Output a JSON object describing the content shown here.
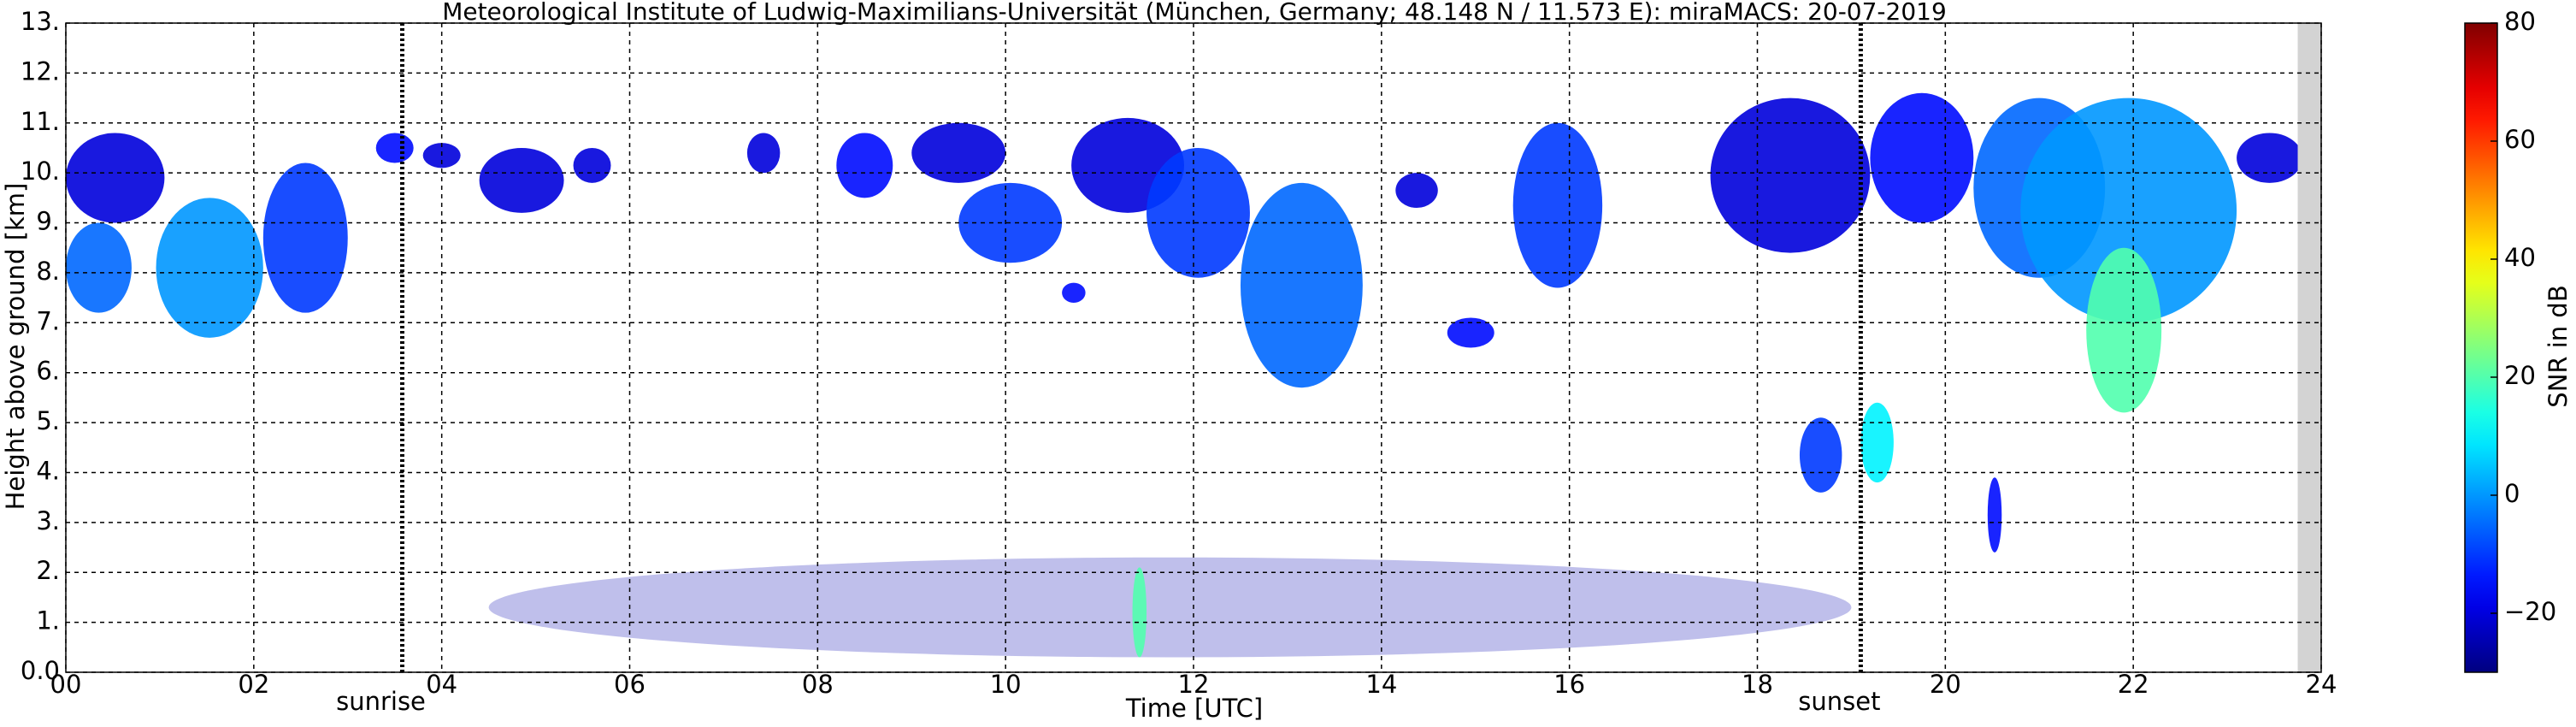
{
  "chart_data": {
    "type": "radar-timeheight",
    "title": "Meteorological Institute of Ludwig-Maximilians-Universität (München, Germany; 48.148 N / 11.573 E):    miraMACS: 20-07-2019",
    "x_label": "Time [UTC]",
    "y_label": "Height above ground [km]",
    "colorbar_label": "SNR in dB",
    "xlim": [
      0,
      24
    ],
    "xticks": [
      {
        "value": 0,
        "label": "00"
      },
      {
        "value": 2,
        "label": "02"
      },
      {
        "value": 4,
        "label": "04"
      },
      {
        "value": 6,
        "label": "06"
      },
      {
        "value": 8,
        "label": "08"
      },
      {
        "value": 10,
        "label": "10"
      },
      {
        "value": 12,
        "label": "12"
      },
      {
        "value": 14,
        "label": "14"
      },
      {
        "value": 16,
        "label": "16"
      },
      {
        "value": 18,
        "label": "18"
      },
      {
        "value": 20,
        "label": "20"
      },
      {
        "value": 22,
        "label": "22"
      },
      {
        "value": 24,
        "label": "24"
      }
    ],
    "ylim": [
      0,
      13
    ],
    "yticks": [
      {
        "value": 0,
        "label": "0.0"
      },
      {
        "value": 1,
        "label": "1."
      },
      {
        "value": 2,
        "label": "2."
      },
      {
        "value": 3,
        "label": "3."
      },
      {
        "value": 4,
        "label": "4."
      },
      {
        "value": 5,
        "label": "5."
      },
      {
        "value": 6,
        "label": "6."
      },
      {
        "value": 7,
        "label": "7."
      },
      {
        "value": 8,
        "label": "8."
      },
      {
        "value": 9,
        "label": "9."
      },
      {
        "value": 10,
        "label": "10."
      },
      {
        "value": 11,
        "label": "11."
      },
      {
        "value": 12,
        "label": "12."
      },
      {
        "value": 13,
        "label": "13."
      }
    ],
    "grid": true,
    "clim": [
      -30,
      80
    ],
    "cticks": [
      {
        "value": -20,
        "label": "−20"
      },
      0,
      20,
      40,
      60,
      80
    ],
    "colormap": "jet",
    "no_data": [
      23.75,
      24
    ],
    "events": [
      {
        "name": "sunrise",
        "time": 3.58
      },
      {
        "name": "sunset",
        "time": 19.1
      }
    ],
    "echoes": [
      {
        "t": [
          0,
          1.05
        ],
        "h": [
          9.0,
          10.8
        ],
        "snr": -20
      },
      {
        "t": [
          0,
          0.7
        ],
        "h": [
          7.2,
          9.0
        ],
        "snr": -5
      },
      {
        "t": [
          0.96,
          2.1
        ],
        "h": [
          6.7,
          9.5
        ],
        "snr": 0
      },
      {
        "t": [
          2.1,
          3.0
        ],
        "h": [
          7.2,
          10.2
        ],
        "snr": -10
      },
      {
        "t": [
          3.3,
          3.7
        ],
        "h": [
          10.2,
          10.8
        ],
        "snr": -15
      },
      {
        "t": [
          3.8,
          4.2
        ],
        "h": [
          10.1,
          10.6
        ],
        "snr": -20
      },
      {
        "t": [
          4.4,
          5.3
        ],
        "h": [
          9.2,
          10.5
        ],
        "snr": -20
      },
      {
        "t": [
          5.4,
          5.8
        ],
        "h": [
          9.8,
          10.5
        ],
        "snr": -20
      },
      {
        "t": [
          7.25,
          7.6
        ],
        "h": [
          10.0,
          10.8
        ],
        "snr": -20
      },
      {
        "t": [
          8.2,
          8.8
        ],
        "h": [
          9.5,
          10.8
        ],
        "snr": -15
      },
      {
        "t": [
          9.0,
          10.0
        ],
        "h": [
          9.8,
          11.0
        ],
        "snr": -20
      },
      {
        "t": [
          9.5,
          10.6
        ],
        "h": [
          8.2,
          9.8
        ],
        "snr": -10
      },
      {
        "t": [
          10.7,
          11.9
        ],
        "h": [
          9.2,
          11.1
        ],
        "snr": -20
      },
      {
        "t": [
          11.5,
          12.6
        ],
        "h": [
          7.9,
          10.5
        ],
        "snr": -10
      },
      {
        "t": [
          12.5,
          13.8
        ],
        "h": [
          5.7,
          9.8
        ],
        "snr": -5
      },
      {
        "t": [
          10.6,
          10.85
        ],
        "h": [
          7.4,
          7.8
        ],
        "snr": -15
      },
      {
        "t": [
          14.15,
          14.6
        ],
        "h": [
          9.3,
          10.0
        ],
        "snr": -20
      },
      {
        "t": [
          14.7,
          15.2
        ],
        "h": [
          6.5,
          7.1
        ],
        "snr": -15
      },
      {
        "t": [
          15.4,
          16.35
        ],
        "h": [
          7.7,
          11.0
        ],
        "snr": -10
      },
      {
        "t": [
          17.5,
          19.2
        ],
        "h": [
          8.4,
          11.5
        ],
        "snr": -20
      },
      {
        "t": [
          19.2,
          20.3
        ],
        "h": [
          9.0,
          11.6
        ],
        "snr": -15
      },
      {
        "t": [
          20.3,
          21.7
        ],
        "h": [
          7.9,
          11.5
        ],
        "snr": -5
      },
      {
        "t": [
          20.8,
          23.1
        ],
        "h": [
          7.0,
          11.5
        ],
        "snr": 0
      },
      {
        "t": [
          21.5,
          22.3
        ],
        "h": [
          5.2,
          8.5
        ],
        "snr": 20
      },
      {
        "t": [
          23.1,
          23.8
        ],
        "h": [
          9.8,
          10.8
        ],
        "snr": -20
      },
      {
        "t": [
          18.45,
          18.9
        ],
        "h": [
          3.6,
          5.1
        ],
        "snr": -10
      },
      {
        "t": [
          19.1,
          19.45
        ],
        "h": [
          3.8,
          5.4
        ],
        "snr": 10
      },
      {
        "t": [
          20.45,
          20.6
        ],
        "h": [
          2.4,
          3.9
        ],
        "snr": -15
      },
      {
        "t": [
          4.5,
          19.0
        ],
        "h": [
          0.3,
          2.3
        ],
        "snr": -25
      },
      {
        "t": [
          11.35,
          11.5
        ],
        "h": [
          0.3,
          2.1
        ],
        "snr": 20
      }
    ]
  }
}
